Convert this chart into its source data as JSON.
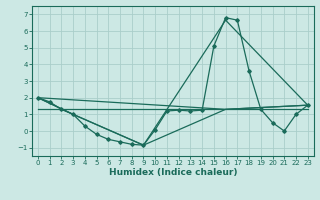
{
  "xlabel": "Humidex (Indice chaleur)",
  "bg_color": "#cce8e4",
  "grid_color": "#aaceca",
  "line_color": "#1a6b5a",
  "xlim": [
    -0.5,
    23.5
  ],
  "ylim": [
    -1.5,
    7.5
  ],
  "xticks": [
    0,
    1,
    2,
    3,
    4,
    5,
    6,
    7,
    8,
    9,
    10,
    11,
    12,
    13,
    14,
    15,
    16,
    17,
    18,
    19,
    20,
    21,
    22,
    23
  ],
  "yticks": [
    -1,
    0,
    1,
    2,
    3,
    4,
    5,
    6,
    7
  ],
  "line1_x": [
    0,
    1,
    2,
    3,
    4,
    5,
    6,
    7,
    8,
    9,
    10,
    11,
    12,
    13,
    14,
    15,
    16,
    17,
    18,
    19,
    20,
    21,
    22,
    23
  ],
  "line1_y": [
    2.0,
    1.75,
    1.3,
    1.0,
    0.3,
    -0.2,
    -0.5,
    -0.65,
    -0.8,
    -0.85,
    0.08,
    1.2,
    1.25,
    1.2,
    1.25,
    5.1,
    6.8,
    6.65,
    3.6,
    1.3,
    0.5,
    0.0,
    1.0,
    1.55
  ],
  "line2_x": [
    0,
    3,
    9,
    16,
    23
  ],
  "line2_y": [
    2.0,
    1.0,
    -0.85,
    6.65,
    1.55
  ],
  "line3_x": [
    0,
    3,
    9,
    16,
    23
  ],
  "line3_y": [
    2.0,
    1.0,
    -0.85,
    1.3,
    1.55
  ],
  "line4_x": [
    0,
    16,
    23
  ],
  "line4_y": [
    2.0,
    1.3,
    1.55
  ],
  "line5_x": [
    0,
    23
  ],
  "line5_y": [
    1.3,
    1.3
  ]
}
